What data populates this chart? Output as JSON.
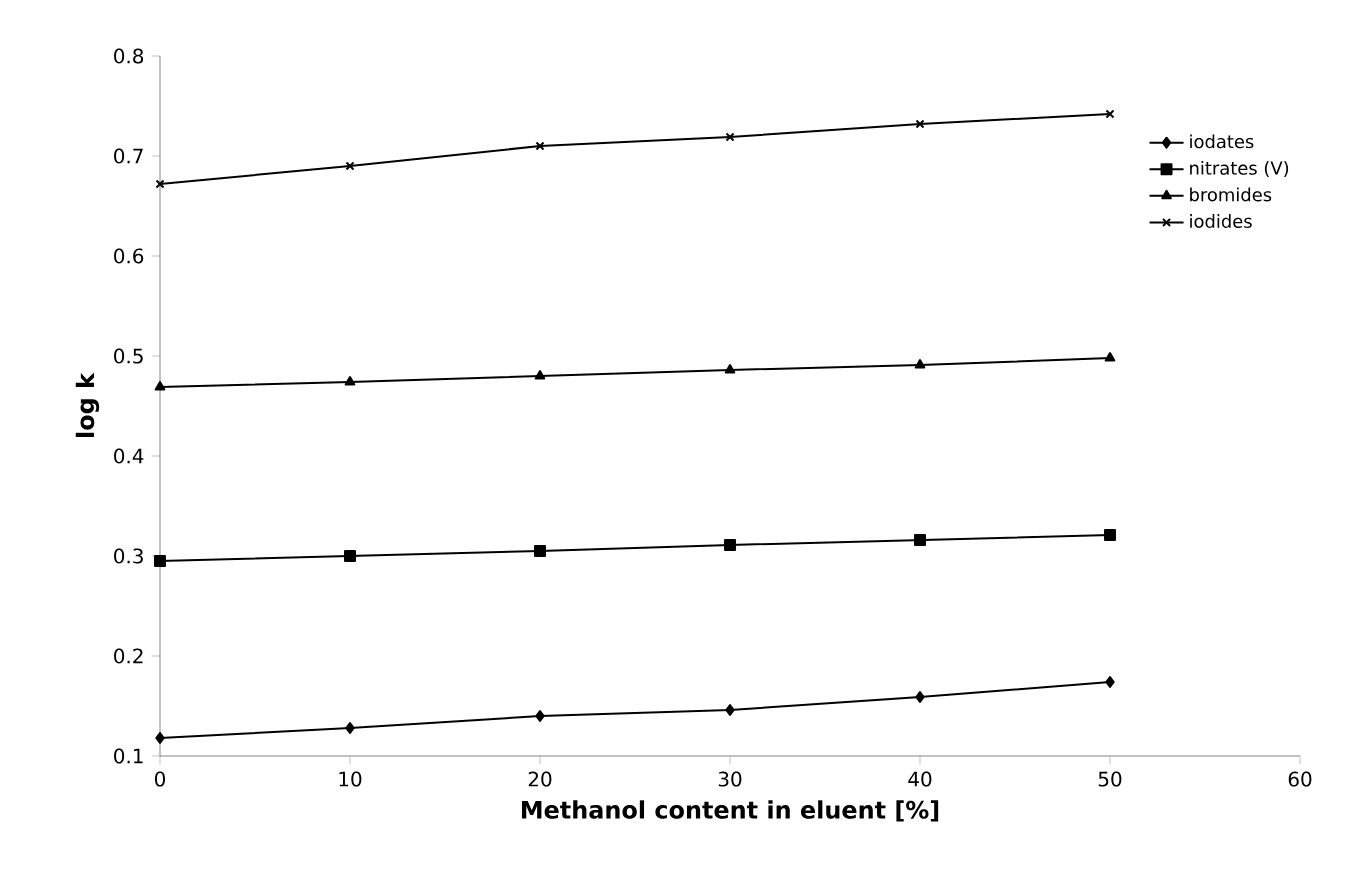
{
  "chart_data": {
    "type": "line",
    "xlabel": "Methanol content in eluent [%]",
    "ylabel": "log k",
    "x": [
      0,
      10,
      20,
      30,
      40,
      50
    ],
    "series": [
      {
        "name": "iodates",
        "color": "#000000",
        "marker": "diamond",
        "values": [
          0.118,
          0.128,
          0.14,
          0.146,
          0.159,
          0.174
        ]
      },
      {
        "name": "nitrates (V)",
        "color": "#000000",
        "marker": "square",
        "values": [
          0.295,
          0.3,
          0.305,
          0.311,
          0.316,
          0.321
        ]
      },
      {
        "name": "bromides",
        "color": "#000000",
        "marker": "triangle",
        "values": [
          0.469,
          0.474,
          0.48,
          0.486,
          0.491,
          0.498
        ]
      },
      {
        "name": "iodides",
        "color": "#000000",
        "marker": "cross",
        "values": [
          0.672,
          0.69,
          0.71,
          0.719,
          0.732,
          0.742
        ]
      }
    ],
    "xlim": [
      0,
      60
    ],
    "xticks": [
      0,
      10,
      20,
      30,
      40,
      50,
      60
    ],
    "ylim": [
      0.1,
      0.8
    ],
    "yticks": [
      0.1,
      0.2,
      0.3,
      0.4,
      0.5,
      0.6,
      0.7,
      0.8
    ],
    "grid": false,
    "legend": "top right",
    "line_style": "solid"
  }
}
